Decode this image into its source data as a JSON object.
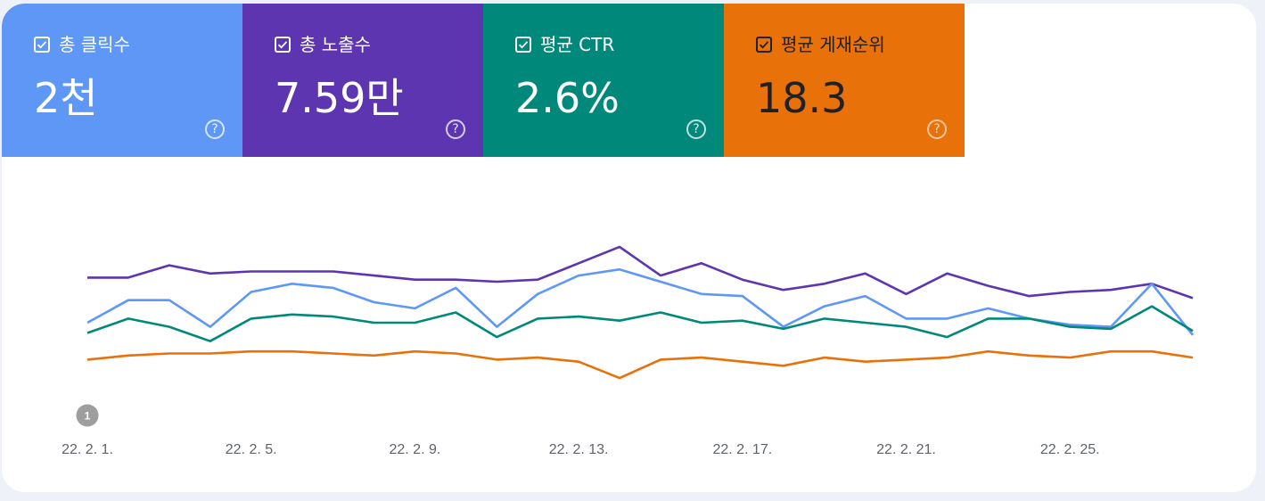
{
  "metrics": {
    "clicks": {
      "label": "총 클릭수",
      "value": "2천",
      "checked": true,
      "color": "#5e97f6"
    },
    "impressions": {
      "label": "총 노출수",
      "value": "7.59만",
      "checked": true,
      "color": "#5e35b1"
    },
    "ctr": {
      "label": "평균 CTR",
      "value": "2.6%",
      "checked": true,
      "color": "#00897b"
    },
    "position": {
      "label": "평균 게재순위",
      "value": "18.3",
      "checked": true,
      "color": "#e8710a"
    }
  },
  "help_glyph": "?",
  "chart_data": {
    "type": "line",
    "x": [
      "22. 2. 1.",
      "22. 2. 2.",
      "22. 2. 3.",
      "22. 2. 4.",
      "22. 2. 5.",
      "22. 2. 6.",
      "22. 2. 7.",
      "22. 2. 8.",
      "22. 2. 9.",
      "22. 2. 10.",
      "22. 2. 11.",
      "22. 2. 12.",
      "22. 2. 13.",
      "22. 2. 14.",
      "22. 2. 15.",
      "22. 2. 16.",
      "22. 2. 17.",
      "22. 2. 18.",
      "22. 2. 19.",
      "22. 2. 20.",
      "22. 2. 21.",
      "22. 2. 22.",
      "22. 2. 23.",
      "22. 2. 24.",
      "22. 2. 25.",
      "22. 2. 26.",
      "22. 2. 27.",
      "22. 2. 28."
    ],
    "x_tick_labels": [
      "22. 2. 1.",
      "22. 2. 5.",
      "22. 2. 9.",
      "22. 2. 13.",
      "22. 2. 17.",
      "22. 2. 21.",
      "22. 2. 25."
    ],
    "x_tick_indices": [
      0,
      4,
      8,
      12,
      16,
      20,
      24
    ],
    "series": [
      {
        "key": "impressions",
        "color": "#5e35b1",
        "values": [
          62,
          62,
          68,
          64,
          65,
          65,
          65,
          63,
          61,
          61,
          60,
          61,
          69,
          77,
          63,
          69,
          61,
          56,
          59,
          64,
          54,
          64,
          58,
          53,
          55,
          56,
          59,
          52
        ]
      },
      {
        "key": "clicks",
        "color": "#5e97f6",
        "values": [
          40,
          51,
          51,
          38,
          55,
          59,
          57,
          50,
          47,
          57,
          38,
          54,
          63,
          66,
          60,
          54,
          53,
          38,
          48,
          53,
          42,
          42,
          47,
          42,
          39,
          38,
          59,
          34
        ]
      },
      {
        "key": "ctr",
        "color": "#00897b",
        "values": [
          35,
          42,
          38,
          31,
          42,
          44,
          43,
          40,
          40,
          45,
          33,
          42,
          43,
          41,
          45,
          40,
          41,
          37,
          42,
          40,
          38,
          33,
          42,
          42,
          38,
          37,
          48,
          36
        ]
      },
      {
        "key": "position",
        "color": "#e8710a",
        "values": [
          22,
          24,
          25,
          25,
          26,
          26,
          25,
          24,
          26,
          25,
          22,
          23,
          21,
          13,
          22,
          23,
          21,
          19,
          23,
          21,
          22,
          23,
          26,
          24,
          23,
          26,
          26,
          23
        ]
      }
    ],
    "annotations": [
      {
        "x_index": 0,
        "label": "1"
      }
    ],
    "grid": false,
    "legend": "none"
  }
}
